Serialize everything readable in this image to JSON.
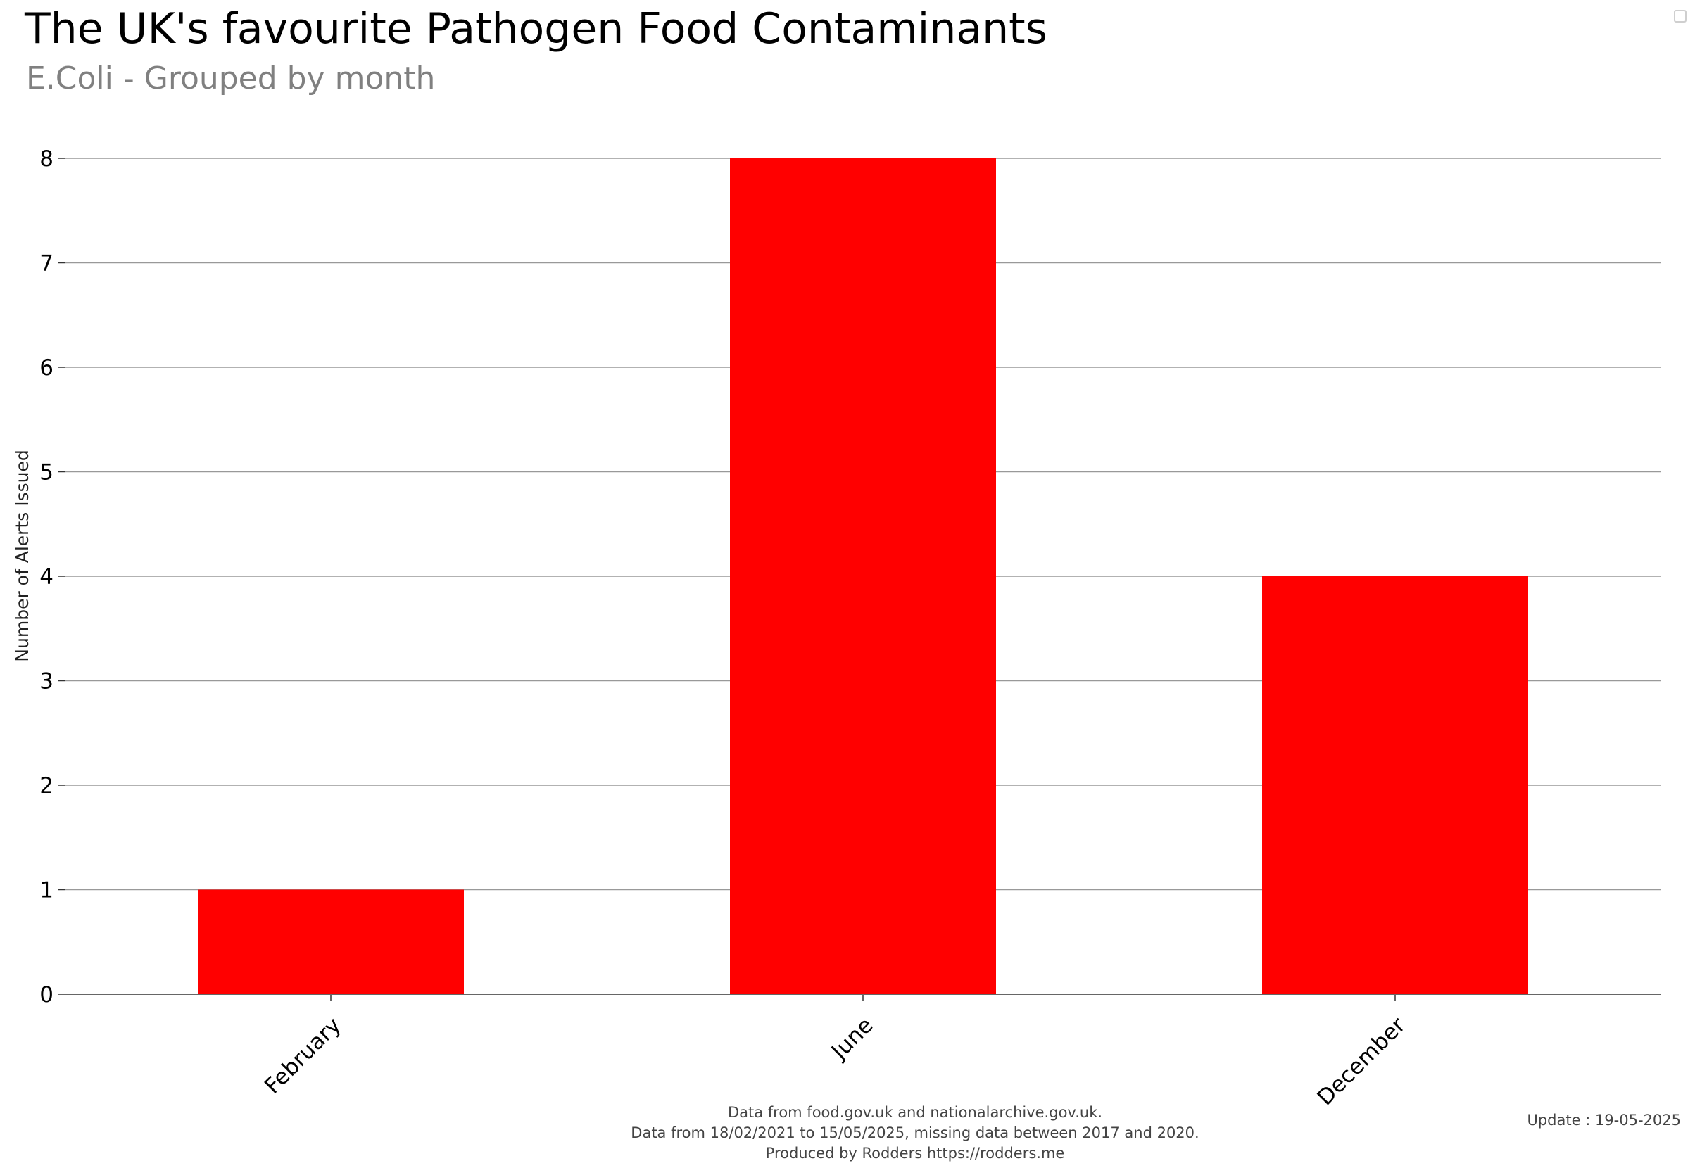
{
  "chart_data": {
    "type": "bar",
    "title": "The UK's favourite Pathogen Food Contaminants",
    "subtitle": "E.Coli - Grouped by month",
    "categories": [
      "February",
      "June",
      "December"
    ],
    "values": [
      1,
      8,
      4
    ],
    "xlabel": "",
    "ylabel": "Number of Alerts Issued",
    "ylim": [
      0,
      8
    ],
    "yticks": [
      0,
      1,
      2,
      3,
      4,
      5,
      6,
      7,
      8
    ],
    "grid": true,
    "bar_color": "#ff0000",
    "grid_color": "#999999",
    "legend": "none"
  },
  "footer": {
    "line1": "Data from food.gov.uk and nationalarchive.gov.uk.",
    "line2": "Data from 18/02/2021 to 15/05/2025, missing data between 2017 and 2020.",
    "line3": "Produced by Rodders https://rodders.me"
  },
  "update_text": "Update : 19-05-2025"
}
